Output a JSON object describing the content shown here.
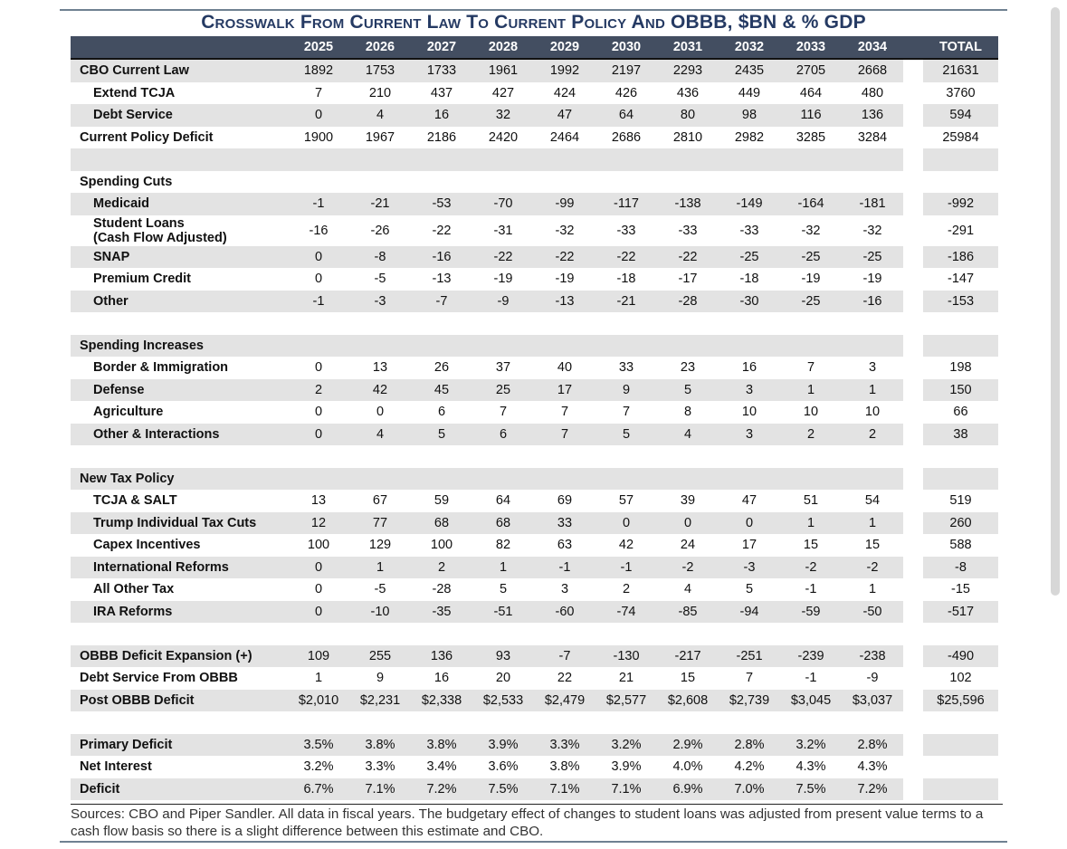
{
  "title": "Crosswalk From Current Law To Current Policy And OBBB, $BN & % GDP",
  "columns": [
    "2025",
    "2026",
    "2027",
    "2028",
    "2029",
    "2030",
    "2031",
    "2032",
    "2033",
    "2034",
    "TOTAL"
  ],
  "rows": [
    {
      "label": "CBO Current Law",
      "indent": false,
      "shade": true,
      "values": [
        "1892",
        "1753",
        "1733",
        "1961",
        "1992",
        "2197",
        "2293",
        "2435",
        "2705",
        "2668",
        "21631"
      ]
    },
    {
      "label": "Extend TCJA",
      "indent": true,
      "shade": false,
      "values": [
        "7",
        "210",
        "437",
        "427",
        "424",
        "426",
        "436",
        "449",
        "464",
        "480",
        "3760"
      ]
    },
    {
      "label": "Debt Service",
      "indent": true,
      "shade": true,
      "values": [
        "0",
        "4",
        "16",
        "32",
        "47",
        "64",
        "80",
        "98",
        "116",
        "136",
        "594"
      ]
    },
    {
      "label": "Current Policy Deficit",
      "indent": false,
      "shade": false,
      "values": [
        "1900",
        "1967",
        "2186",
        "2420",
        "2464",
        "2686",
        "2810",
        "2982",
        "3285",
        "3284",
        "25984"
      ]
    },
    {
      "label": "",
      "indent": false,
      "shade": true,
      "values": [
        "",
        "",
        "",
        "",
        "",
        "",
        "",
        "",
        "",
        "",
        ""
      ]
    },
    {
      "label": "Spending Cuts",
      "indent": false,
      "shade": false,
      "values": [
        "",
        "",
        "",
        "",
        "",
        "",
        "",
        "",
        "",
        "",
        ""
      ]
    },
    {
      "label": "Medicaid",
      "indent": true,
      "shade": true,
      "values": [
        "-1",
        "-21",
        "-53",
        "-70",
        "-99",
        "-117",
        "-138",
        "-149",
        "-164",
        "-181",
        "-992"
      ]
    },
    {
      "label": "Student Loans\n(Cash Flow Adjusted)",
      "indent": true,
      "shade": false,
      "tall": true,
      "values": [
        "-16",
        "-26",
        "-22",
        "-31",
        "-32",
        "-33",
        "-33",
        "-33",
        "-32",
        "-32",
        "-291"
      ]
    },
    {
      "label": "SNAP",
      "indent": true,
      "shade": true,
      "values": [
        "0",
        "-8",
        "-16",
        "-22",
        "-22",
        "-22",
        "-22",
        "-25",
        "-25",
        "-25",
        "-186"
      ]
    },
    {
      "label": "Premium Credit",
      "indent": true,
      "shade": false,
      "values": [
        "0",
        "-5",
        "-13",
        "-19",
        "-19",
        "-18",
        "-17",
        "-18",
        "-19",
        "-19",
        "-147"
      ]
    },
    {
      "label": "Other",
      "indent": true,
      "shade": true,
      "values": [
        "-1",
        "-3",
        "-7",
        "-9",
        "-13",
        "-21",
        "-28",
        "-30",
        "-25",
        "-16",
        "-153"
      ]
    },
    {
      "label": "",
      "indent": false,
      "shade": false,
      "values": [
        "",
        "",
        "",
        "",
        "",
        "",
        "",
        "",
        "",
        "",
        ""
      ]
    },
    {
      "label": "Spending Increases",
      "indent": false,
      "shade": true,
      "values": [
        "",
        "",
        "",
        "",
        "",
        "",
        "",
        "",
        "",
        "",
        ""
      ]
    },
    {
      "label": "Border & Immigration",
      "indent": true,
      "shade": false,
      "values": [
        "0",
        "13",
        "26",
        "37",
        "40",
        "33",
        "23",
        "16",
        "7",
        "3",
        "198"
      ]
    },
    {
      "label": "Defense",
      "indent": true,
      "shade": true,
      "values": [
        "2",
        "42",
        "45",
        "25",
        "17",
        "9",
        "5",
        "3",
        "1",
        "1",
        "150"
      ]
    },
    {
      "label": "Agriculture",
      "indent": true,
      "shade": false,
      "values": [
        "0",
        "0",
        "6",
        "7",
        "7",
        "7",
        "8",
        "10",
        "10",
        "10",
        "66"
      ]
    },
    {
      "label": "Other & Interactions",
      "indent": true,
      "shade": true,
      "values": [
        "0",
        "4",
        "5",
        "6",
        "7",
        "5",
        "4",
        "3",
        "2",
        "2",
        "38"
      ]
    },
    {
      "label": "",
      "indent": false,
      "shade": false,
      "values": [
        "",
        "",
        "",
        "",
        "",
        "",
        "",
        "",
        "",
        "",
        ""
      ]
    },
    {
      "label": "New Tax Policy",
      "indent": false,
      "shade": true,
      "values": [
        "",
        "",
        "",
        "",
        "",
        "",
        "",
        "",
        "",
        "",
        ""
      ]
    },
    {
      "label": "TCJA & SALT",
      "indent": true,
      "shade": false,
      "values": [
        "13",
        "67",
        "59",
        "64",
        "69",
        "57",
        "39",
        "47",
        "51",
        "54",
        "519"
      ]
    },
    {
      "label": "Trump Individual Tax Cuts",
      "indent": true,
      "shade": true,
      "values": [
        "12",
        "77",
        "68",
        "68",
        "33",
        "0",
        "0",
        "0",
        "1",
        "1",
        "260"
      ]
    },
    {
      "label": "Capex Incentives",
      "indent": true,
      "shade": false,
      "values": [
        "100",
        "129",
        "100",
        "82",
        "63",
        "42",
        "24",
        "17",
        "15",
        "15",
        "588"
      ]
    },
    {
      "label": "International Reforms",
      "indent": true,
      "shade": true,
      "values": [
        "0",
        "1",
        "2",
        "1",
        "-1",
        "-1",
        "-2",
        "-3",
        "-2",
        "-2",
        "-8"
      ]
    },
    {
      "label": "All Other Tax",
      "indent": true,
      "shade": false,
      "values": [
        "0",
        "-5",
        "-28",
        "5",
        "3",
        "2",
        "4",
        "5",
        "-1",
        "1",
        "-15"
      ]
    },
    {
      "label": "IRA Reforms",
      "indent": true,
      "shade": true,
      "values": [
        "0",
        "-10",
        "-35",
        "-51",
        "-60",
        "-74",
        "-85",
        "-94",
        "-59",
        "-50",
        "-517"
      ]
    },
    {
      "label": "",
      "indent": false,
      "shade": false,
      "values": [
        "",
        "",
        "",
        "",
        "",
        "",
        "",
        "",
        "",
        "",
        ""
      ]
    },
    {
      "label": "OBBB Deficit Expansion (+)",
      "indent": false,
      "shade": true,
      "values": [
        "109",
        "255",
        "136",
        "93",
        "-7",
        "-130",
        "-217",
        "-251",
        "-239",
        "-238",
        "-490"
      ]
    },
    {
      "label": "Debt Service From OBBB",
      "indent": false,
      "shade": false,
      "values": [
        "1",
        "9",
        "16",
        "20",
        "22",
        "21",
        "15",
        "7",
        "-1",
        "-9",
        "102"
      ]
    },
    {
      "label": "Post OBBB Deficit",
      "indent": false,
      "shade": true,
      "values": [
        "$2,010",
        "$2,231",
        "$2,338",
        "$2,533",
        "$2,479",
        "$2,577",
        "$2,608",
        "$2,739",
        "$3,045",
        "$3,037",
        "$25,596"
      ]
    },
    {
      "label": "",
      "indent": false,
      "shade": false,
      "values": [
        "",
        "",
        "",
        "",
        "",
        "",
        "",
        "",
        "",
        "",
        ""
      ]
    },
    {
      "label": "Primary Deficit",
      "indent": false,
      "shade": true,
      "values": [
        "3.5%",
        "3.8%",
        "3.8%",
        "3.9%",
        "3.3%",
        "3.2%",
        "2.9%",
        "2.8%",
        "3.2%",
        "2.8%",
        ""
      ]
    },
    {
      "label": "Net Interest",
      "indent": false,
      "shade": false,
      "values": [
        "3.2%",
        "3.3%",
        "3.4%",
        "3.6%",
        "3.8%",
        "3.9%",
        "4.0%",
        "4.2%",
        "4.3%",
        "4.3%",
        ""
      ]
    },
    {
      "label": "Deficit",
      "indent": false,
      "shade": true,
      "values": [
        "6.7%",
        "7.1%",
        "7.2%",
        "7.5%",
        "7.1%",
        "7.1%",
        "6.9%",
        "7.0%",
        "7.5%",
        "7.2%",
        ""
      ]
    }
  ],
  "source": "Sources: CBO and Piper Sandler. All data in fiscal years. The budgetary effect of changes to student loans was adjusted from present value terms to a cash flow basis so there is a slight difference between this estimate and CBO."
}
